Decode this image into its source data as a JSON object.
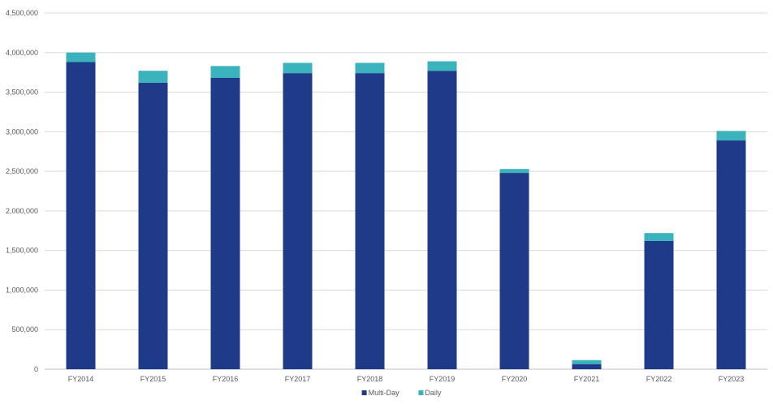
{
  "chart_data": {
    "type": "bar",
    "stacked": true,
    "categories": [
      "FY2014",
      "FY2015",
      "FY2016",
      "FY2017",
      "FY2018",
      "FY2019",
      "FY2020",
      "FY2021",
      "FY2022",
      "FY2023"
    ],
    "series": [
      {
        "name": "Multi-Day",
        "color": "#203a8a",
        "values": [
          3880000,
          3620000,
          3680000,
          3740000,
          3740000,
          3770000,
          2480000,
          65000,
          1620000,
          2890000
        ]
      },
      {
        "name": "Daily",
        "color": "#3bb3bd",
        "values": [
          120000,
          150000,
          150000,
          130000,
          130000,
          120000,
          50000,
          50000,
          100000,
          120000
        ]
      }
    ],
    "ylim": [
      0,
      4500000
    ],
    "yticks": [
      0,
      500000,
      1000000,
      1500000,
      2000000,
      2500000,
      3000000,
      3500000,
      4000000,
      4500000
    ],
    "ytick_labels": [
      "0",
      "500,000",
      "1,000,000",
      "1,500,000",
      "2,000,000",
      "2,500,000",
      "3,000,000",
      "3,500,000",
      "4,000,000",
      "4,500,000"
    ],
    "grid": true,
    "legend_position": "bottom-center"
  }
}
